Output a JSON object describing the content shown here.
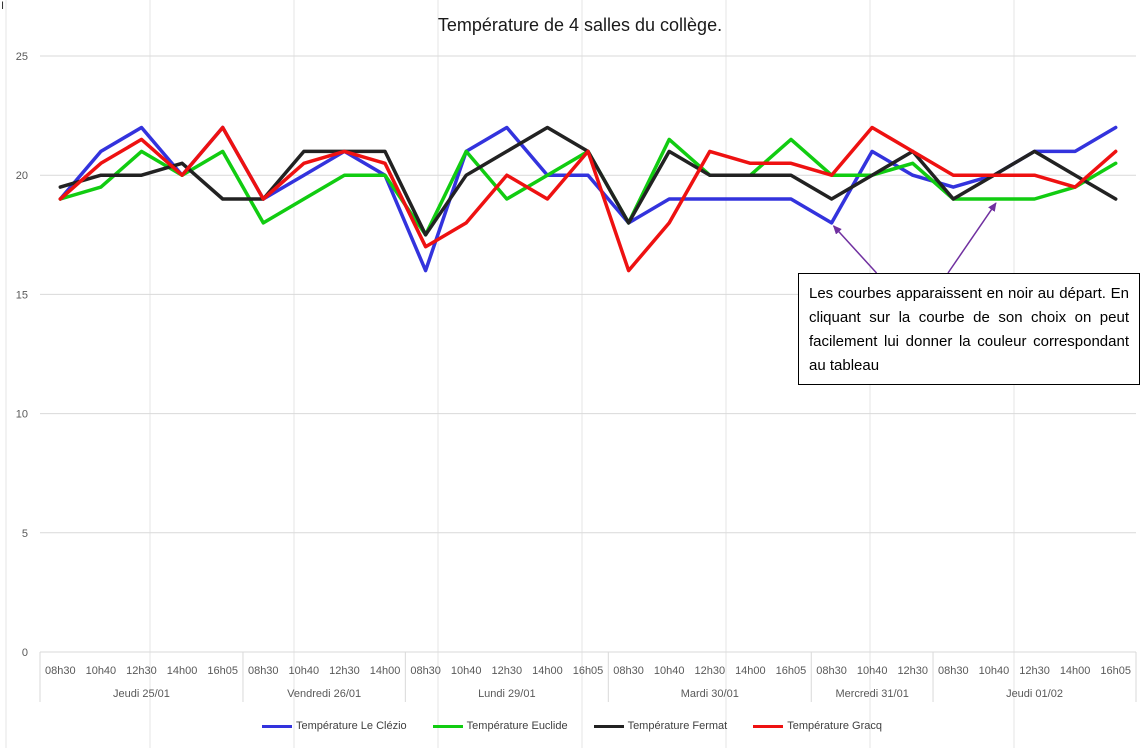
{
  "chart_data": {
    "type": "line",
    "title": "Température de 4 salles du collège.",
    "ylim": [
      0,
      25
    ],
    "yticks": [
      0,
      5,
      10,
      15,
      20,
      25
    ],
    "grid": true,
    "legend_position": "bottom",
    "groups": [
      {
        "label": "Jeudi 25/01",
        "times": [
          "08h30",
          "10h40",
          "12h30",
          "14h00",
          "16h05"
        ]
      },
      {
        "label": "Vendredi 26/01",
        "times": [
          "08h30",
          "10h40",
          "12h30",
          "14h00"
        ]
      },
      {
        "label": "Lundi 29/01",
        "times": [
          "08h30",
          "10h40",
          "12h30",
          "14h00",
          "16h05"
        ]
      },
      {
        "label": "Mardi 30/01",
        "times": [
          "08h30",
          "10h40",
          "12h30",
          "14h00",
          "16h05"
        ]
      },
      {
        "label": "Mercredi 31/01",
        "times": [
          "08h30",
          "10h40",
          "12h30"
        ]
      },
      {
        "label": "Jeudi 01/02",
        "times": [
          "08h30",
          "10h40",
          "12h30",
          "14h00",
          "16h05"
        ]
      }
    ],
    "series": [
      {
        "name": "Température Le Clézio",
        "color": "#3333dd",
        "values": [
          19,
          21,
          22,
          20,
          22,
          19,
          20,
          21,
          20,
          16,
          21,
          22,
          20,
          20,
          18,
          19,
          19,
          19,
          19,
          18,
          21,
          20,
          19.5,
          20,
          21,
          21,
          22
        ]
      },
      {
        "name": "Température Euclide",
        "color": "#11cc11",
        "values": [
          19,
          19.5,
          21,
          20,
          21,
          18,
          19,
          20,
          20,
          17.5,
          21,
          19,
          20,
          21,
          18,
          21.5,
          20,
          20,
          21.5,
          20,
          20,
          20.5,
          19,
          19,
          19,
          19.5,
          20.5
        ]
      },
      {
        "name": "Température Fermat",
        "color": "#222222",
        "values": [
          19.5,
          20,
          20,
          20.5,
          19,
          19,
          21,
          21,
          21,
          17.5,
          20,
          21,
          22,
          21,
          18,
          21,
          20,
          20,
          20,
          19,
          20,
          21,
          19,
          20,
          21,
          20,
          19
        ]
      },
      {
        "name": "Température Gracq",
        "color": "#ee1111",
        "values": [
          19,
          20.5,
          21.5,
          20,
          22,
          19,
          20.5,
          21,
          20.5,
          17,
          18,
          20,
          19,
          21,
          16,
          18,
          21,
          20.5,
          20.5,
          20,
          22,
          21,
          20,
          20,
          20,
          19.5,
          21
        ]
      }
    ],
    "annotation": {
      "text": "Les courbes apparaissent en noir au départ. En cliquant sur la courbe de son choix on peut facilement lui donner la couleur correspondant au tableau",
      "arrow_color": "#7030a0"
    }
  },
  "cursor_glyph": "I"
}
